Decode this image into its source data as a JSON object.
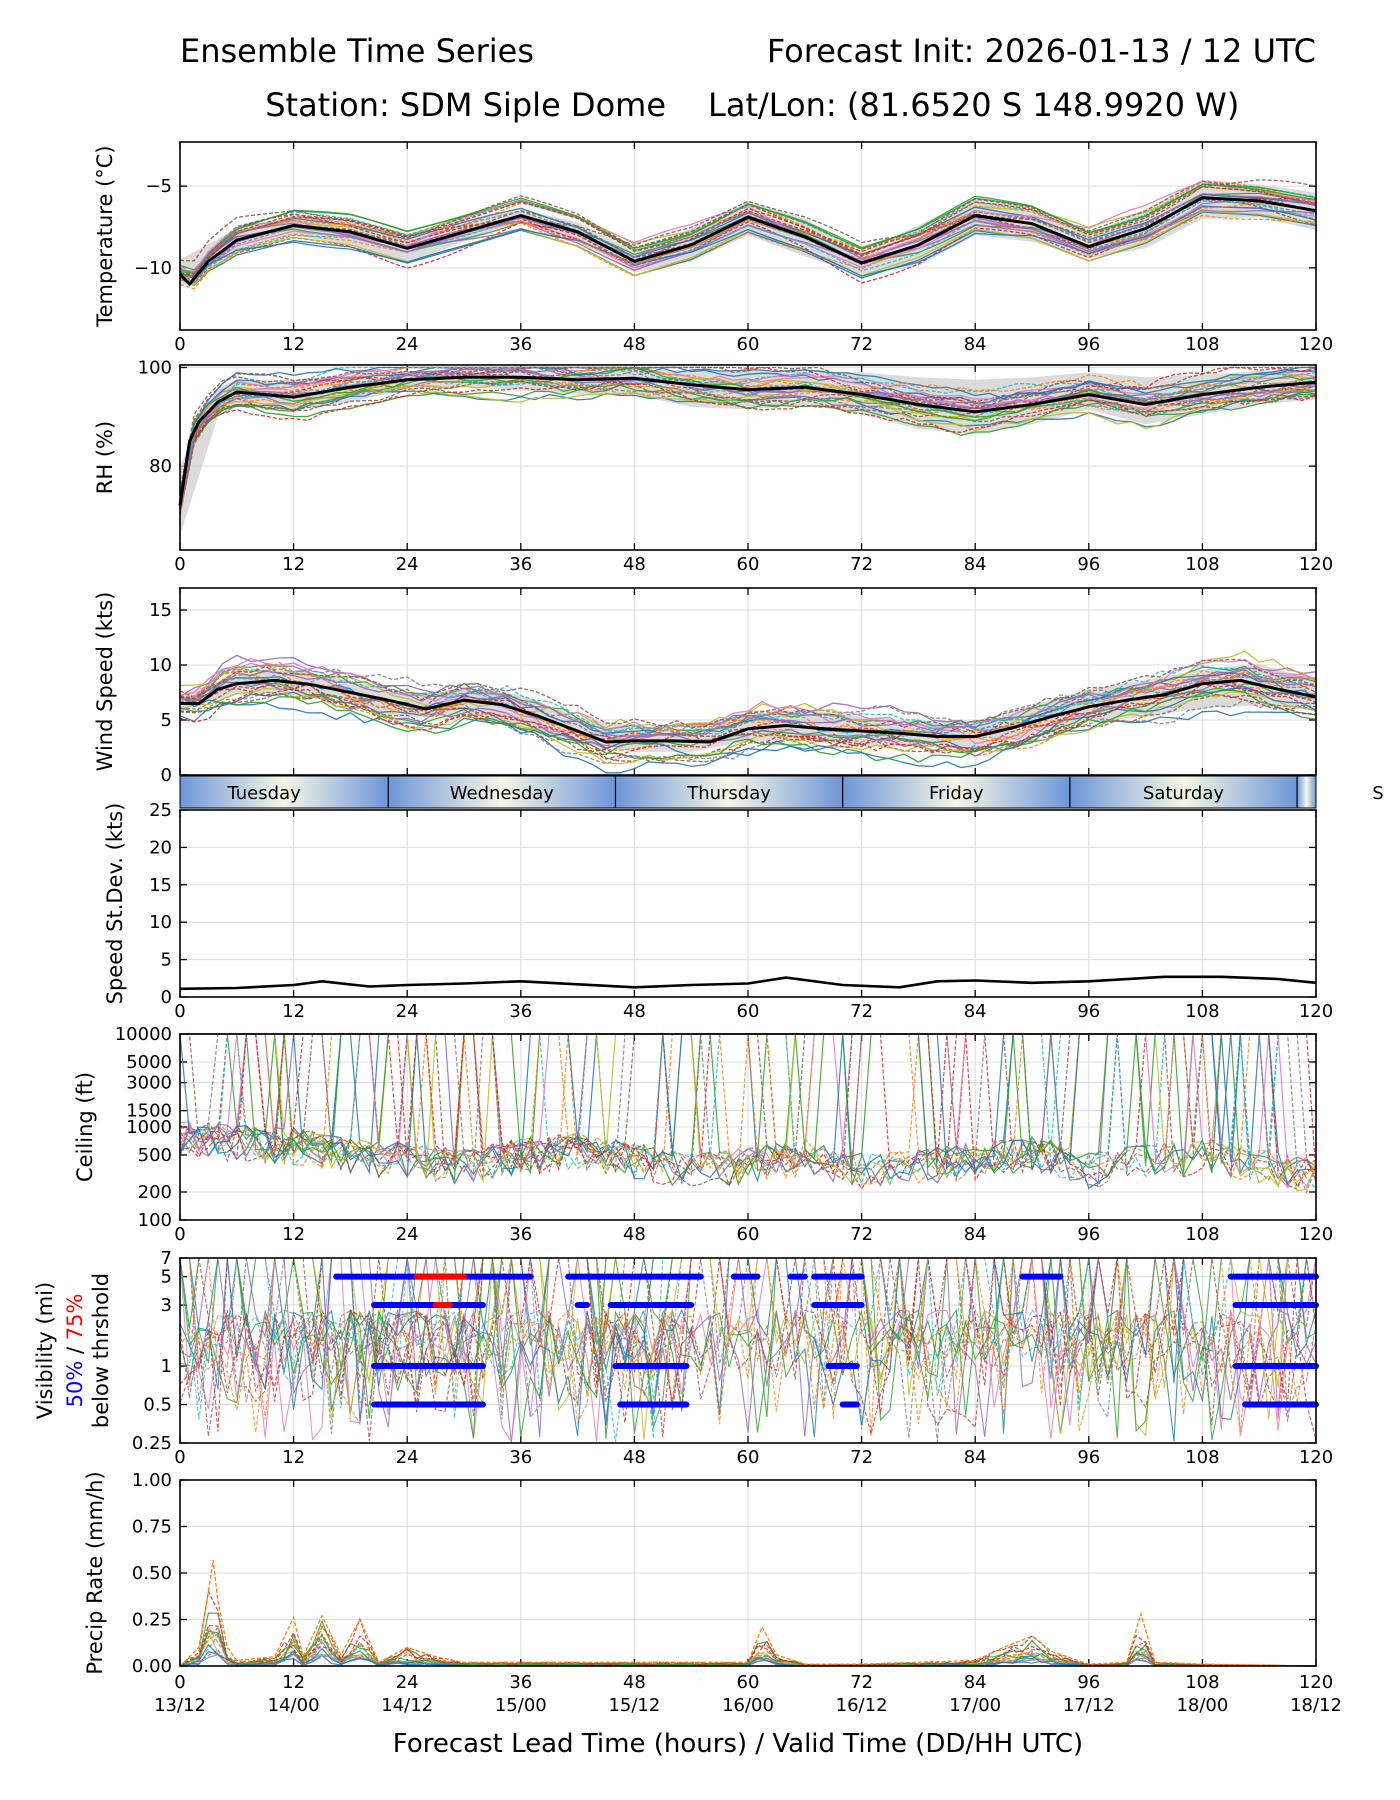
{
  "header": {
    "title_left": "Ensemble Time Series",
    "title_right": "Forecast Init: 2026-01-13 / 12 UTC",
    "station": "Station: SDM  Siple Dome",
    "latlon": "Lat/Lon: (81.6520 S 148.9920 W)"
  },
  "colors": {
    "ens_mean": "#000000",
    "spread": "#cfcfcf",
    "vis_50": "#0000ff",
    "vis_75": "#ff0000",
    "day_band_edge": "#6f95d8",
    "day_band_mid": "#f5f7e6"
  },
  "day_band": {
    "days": [
      "Tuesday",
      "Wednesday",
      "Thursday",
      "Friday",
      "Saturday",
      "S"
    ],
    "boundaries_h": [
      22,
      46,
      70,
      94,
      118
    ]
  },
  "x_axis": {
    "ticks": [
      0,
      12,
      24,
      36,
      48,
      60,
      72,
      84,
      96,
      108,
      120
    ],
    "valid_labels": [
      "13/12",
      "14/00",
      "14/12",
      "15/00",
      "15/12",
      "16/00",
      "16/12",
      "17/00",
      "17/12",
      "18/00",
      "18/12"
    ],
    "xlabel": "Forecast Lead Time (hours) / Valid Time (DD/HH UTC)"
  },
  "chart_data": [
    {
      "id": "temperature",
      "type": "line",
      "ylabel": "Temperature (°C)",
      "ylim": [
        -13.8,
        -2.3
      ],
      "yticks": [
        -10,
        -5
      ],
      "ytick_labels": [
        "−10",
        "−5"
      ],
      "series": [
        {
          "name": "ensemble mean",
          "x": [
            0,
            1,
            3,
            6,
            12,
            18,
            24,
            30,
            36,
            42,
            48,
            54,
            60,
            66,
            72,
            78,
            84,
            90,
            96,
            102,
            108,
            114,
            120
          ],
          "y": [
            -10.4,
            -11.0,
            -9.6,
            -8.3,
            -7.4,
            -7.8,
            -8.8,
            -7.8,
            -6.8,
            -7.8,
            -9.6,
            -8.6,
            -6.9,
            -8.1,
            -9.7,
            -8.6,
            -6.8,
            -7.3,
            -8.7,
            -7.6,
            -5.7,
            -5.9,
            -6.5
          ]
        },
        {
          "name": "spread low",
          "x": [
            0,
            6,
            12,
            18,
            24,
            30,
            36,
            42,
            48,
            54,
            60,
            66,
            72,
            78,
            84,
            90,
            96,
            102,
            108,
            114,
            120
          ],
          "y": [
            -11.2,
            -9.1,
            -8.0,
            -8.6,
            -9.7,
            -8.4,
            -7.2,
            -8.4,
            -10.3,
            -9.6,
            -8.0,
            -9.3,
            -10.4,
            -9.9,
            -8.0,
            -8.4,
            -9.4,
            -8.8,
            -7.0,
            -6.9,
            -7.7
          ]
        },
        {
          "name": "spread high",
          "x": [
            0,
            6,
            12,
            18,
            24,
            30,
            36,
            42,
            48,
            54,
            60,
            66,
            72,
            78,
            84,
            90,
            96,
            102,
            108,
            114,
            120
          ],
          "y": [
            -9.5,
            -7.6,
            -6.8,
            -7.0,
            -7.9,
            -7.1,
            -6.4,
            -7.2,
            -9.0,
            -7.6,
            -5.9,
            -7.0,
            -9.0,
            -7.4,
            -5.7,
            -6.2,
            -8.0,
            -6.4,
            -4.6,
            -4.9,
            -5.4
          ]
        }
      ]
    },
    {
      "id": "rh",
      "type": "line",
      "ylabel": "RH (%)",
      "ylim": [
        63,
        100.5
      ],
      "yticks": [
        80,
        100
      ],
      "ytick_labels": [
        "80",
        "100"
      ],
      "series": [
        {
          "name": "ensemble mean",
          "x": [
            0,
            1,
            2,
            4,
            6,
            12,
            18,
            24,
            30,
            36,
            42,
            48,
            54,
            60,
            66,
            72,
            78,
            84,
            90,
            96,
            102,
            108,
            114,
            120
          ],
          "y": [
            72,
            85,
            89,
            93,
            95,
            94,
            96,
            97.5,
            98,
            98,
            97.5,
            97.8,
            96.5,
            95.5,
            96,
            94.5,
            92.5,
            91,
            92.5,
            94.5,
            92.5,
            94.5,
            96,
            97
          ]
        },
        {
          "name": "spread low",
          "x": [
            0,
            4,
            6,
            12,
            18,
            24,
            30,
            36,
            42,
            48,
            54,
            60,
            66,
            72,
            78,
            84,
            90,
            96,
            102,
            108,
            114,
            120
          ],
          "y": [
            66,
            90,
            92,
            91.5,
            93,
            95.5,
            96,
            95.5,
            94.5,
            94.5,
            92,
            91.5,
            92.5,
            90.5,
            87.5,
            86.5,
            88.5,
            91.5,
            88.5,
            90.5,
            92.5,
            93.5
          ]
        },
        {
          "name": "spread high",
          "x": [
            0,
            4,
            6,
            12,
            18,
            24,
            30,
            36,
            42,
            48,
            54,
            60,
            66,
            72,
            78,
            84,
            90,
            96,
            102,
            108,
            114,
            120
          ],
          "y": [
            80,
            96,
            97.5,
            97.5,
            98.5,
            99.3,
            99.5,
            99.5,
            99.5,
            99.5,
            99.5,
            99.3,
            99.3,
            99,
            98,
            97.5,
            98,
            99,
            98,
            98.5,
            99.3,
            99.5
          ]
        }
      ]
    },
    {
      "id": "wind",
      "type": "line",
      "ylabel": "Wind Speed (kts)",
      "ylim": [
        0,
        17
      ],
      "yticks": [
        0,
        5,
        10,
        15
      ],
      "ytick_labels": [
        "0",
        "5",
        "10",
        "15"
      ],
      "series": [
        {
          "name": "ensemble mean",
          "x": [
            0,
            2,
            4,
            6,
            10,
            14,
            18,
            22,
            26,
            30,
            34,
            38,
            42,
            45,
            48,
            52,
            56,
            60,
            64,
            68,
            72,
            76,
            80,
            84,
            88,
            92,
            96,
            100,
            104,
            108,
            112,
            116,
            120
          ],
          "y": [
            6.5,
            6.5,
            7.8,
            8.3,
            8.6,
            8.2,
            7.5,
            6.8,
            6.0,
            6.8,
            6.4,
            5.3,
            4.0,
            3.0,
            3.1,
            3.1,
            3.0,
            4.2,
            4.5,
            4.2,
            4.0,
            3.8,
            3.5,
            3.5,
            4.3,
            5.3,
            6.2,
            6.8,
            7.3,
            8.3,
            8.6,
            7.8,
            7.1
          ]
        },
        {
          "name": "spread low",
          "x": [
            0,
            6,
            12,
            18,
            24,
            30,
            36,
            42,
            48,
            54,
            60,
            66,
            72,
            78,
            84,
            90,
            96,
            102,
            108,
            114,
            120
          ],
          "y": [
            5.8,
            7.3,
            7.3,
            6.4,
            5.1,
            5.6,
            4.6,
            2.9,
            2.1,
            2.1,
            3.1,
            3.1,
            2.6,
            2.6,
            2.4,
            3.6,
            4.8,
            5.3,
            6.1,
            6.3,
            5.9
          ]
        },
        {
          "name": "spread high",
          "x": [
            0,
            6,
            12,
            18,
            24,
            30,
            36,
            42,
            48,
            54,
            60,
            66,
            72,
            78,
            84,
            90,
            96,
            102,
            108,
            114,
            120
          ],
          "y": [
            7.3,
            9.1,
            9.6,
            8.6,
            7.3,
            7.9,
            7.3,
            5.3,
            4.3,
            4.2,
            5.6,
            6.0,
            5.3,
            4.9,
            4.9,
            6.3,
            7.8,
            8.6,
            9.6,
            10.1,
            8.6
          ]
        }
      ]
    },
    {
      "id": "speed_stdev",
      "type": "line",
      "ylabel": "Speed St.Dev. (kts)",
      "ylim": [
        0,
        25
      ],
      "yticks": [
        0,
        5,
        10,
        15,
        20,
        25
      ],
      "ytick_labels": [
        "0",
        "5",
        "10",
        "15",
        "20",
        "25"
      ],
      "series": [
        {
          "name": "std dev",
          "x": [
            0,
            6,
            12,
            15,
            20,
            24,
            30,
            36,
            42,
            48,
            54,
            60,
            64,
            70,
            76,
            80,
            84,
            90,
            96,
            104,
            110,
            116,
            120
          ],
          "y": [
            1.1,
            1.2,
            1.6,
            2.1,
            1.4,
            1.6,
            1.8,
            2.1,
            1.7,
            1.3,
            1.6,
            1.8,
            2.6,
            1.6,
            1.3,
            2.1,
            2.2,
            1.9,
            2.1,
            2.7,
            2.7,
            2.4,
            1.9
          ]
        }
      ]
    },
    {
      "id": "ceiling",
      "type": "line",
      "ylabel": "Ceiling (ft)",
      "yscale": "log",
      "ylim": [
        100,
        10000
      ],
      "yticks": [
        100,
        200,
        500,
        1000,
        1500,
        3000,
        5000,
        10000
      ],
      "ytick_labels": [
        "100",
        "200",
        "500",
        "1000",
        "1500",
        "3000",
        "5000",
        "10000"
      ],
      "series": [
        {
          "name": "typical low ceiling",
          "x": [
            0,
            6,
            12,
            18,
            24,
            30,
            36,
            42,
            48,
            54,
            60,
            66,
            72,
            78,
            84,
            90,
            96,
            102,
            108,
            114,
            120
          ],
          "y": [
            800,
            700,
            650,
            500,
            450,
            400,
            500,
            600,
            450,
            350,
            400,
            500,
            350,
            380,
            450,
            550,
            350,
            450,
            500,
            400,
            300
          ]
        }
      ]
    },
    {
      "id": "visibility",
      "type": "line",
      "ylabel_lines": [
        "Visibility (mi)",
        "50% / 75%",
        "below thrshold"
      ],
      "legend_50": "50%",
      "legend_sep": " / ",
      "legend_75": "75%",
      "yscale": "log",
      "ylim": [
        0.25,
        7
      ],
      "yticks": [
        0.25,
        0.5,
        1,
        3,
        5,
        7
      ],
      "ytick_labels": [
        "0.25",
        "0.5",
        "1",
        "3",
        "5",
        "7"
      ],
      "threshold_segments_50": [
        {
          "level": 5,
          "from": 16.5,
          "to": 37
        },
        {
          "level": 5,
          "from": 41,
          "to": 55
        },
        {
          "level": 5,
          "from": 58.5,
          "to": 61
        },
        {
          "level": 5,
          "from": 64.5,
          "to": 66
        },
        {
          "level": 5,
          "from": 67,
          "to": 72
        },
        {
          "level": 5,
          "from": 89,
          "to": 93
        },
        {
          "level": 5,
          "from": 111,
          "to": 120
        },
        {
          "level": 3,
          "from": 20.5,
          "to": 32
        },
        {
          "level": 3,
          "from": 42,
          "to": 43
        },
        {
          "level": 3,
          "from": 45.5,
          "to": 54
        },
        {
          "level": 3,
          "from": 67,
          "to": 72
        },
        {
          "level": 3,
          "from": 111.5,
          "to": 120
        },
        {
          "level": 1,
          "from": 20.5,
          "to": 32
        },
        {
          "level": 1,
          "from": 46,
          "to": 53.5
        },
        {
          "level": 1,
          "from": 68.5,
          "to": 71.5
        },
        {
          "level": 1,
          "from": 111.5,
          "to": 120
        },
        {
          "level": 0.5,
          "from": 20.5,
          "to": 32
        },
        {
          "level": 0.5,
          "from": 46.5,
          "to": 53.5
        },
        {
          "level": 0.5,
          "from": 70,
          "to": 71.5
        },
        {
          "level": 0.5,
          "from": 112.5,
          "to": 120
        }
      ],
      "threshold_segments_75": [
        {
          "level": 5,
          "from": 25,
          "to": 30
        },
        {
          "level": 3,
          "from": 27,
          "to": 28.5
        }
      ]
    },
    {
      "id": "precip",
      "type": "line",
      "ylabel": "Precip Rate (mm/h)",
      "ylim": [
        0,
        1
      ],
      "yticks": [
        0,
        0.25,
        0.5,
        0.75,
        1
      ],
      "ytick_labels": [
        "0.00",
        "0.25",
        "0.50",
        "0.75",
        "1.00"
      ],
      "series": [
        {
          "name": "max member",
          "x": [
            0,
            2,
            3,
            3.5,
            4,
            5,
            6,
            10,
            12,
            13,
            15,
            17,
            19,
            21,
            24,
            27,
            30,
            36,
            48,
            60,
            61.5,
            63,
            66,
            72,
            84,
            87,
            90,
            92,
            96,
            100,
            101.5,
            103,
            108,
            120
          ],
          "y": [
            0,
            0.1,
            0.4,
            0.57,
            0.35,
            0.1,
            0.03,
            0.05,
            0.26,
            0.05,
            0.27,
            0.06,
            0.25,
            0.02,
            0.1,
            0.05,
            0.02,
            0.02,
            0.02,
            0.02,
            0.21,
            0.06,
            0.01,
            0.01,
            0.03,
            0.1,
            0.16,
            0.08,
            0.01,
            0.02,
            0.28,
            0.02,
            0.01,
            0
          ]
        }
      ]
    }
  ]
}
